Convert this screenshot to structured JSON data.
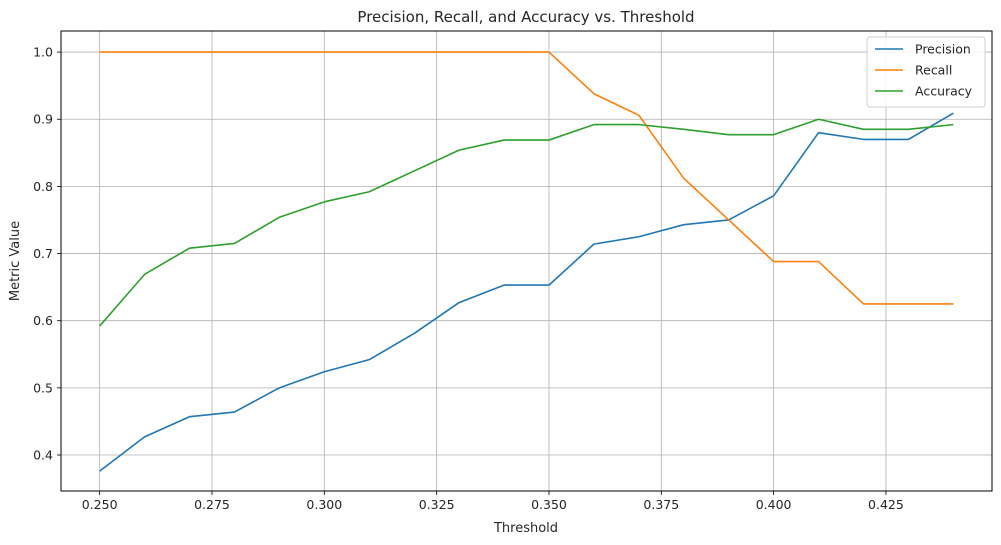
{
  "chart_data": {
    "type": "line",
    "title": "Precision, Recall, and Accuracy vs. Threshold",
    "xlabel": "Threshold",
    "ylabel": "Metric Value",
    "xlim": [
      0.2414,
      0.4486
    ],
    "ylim": [
      0.3464,
      1.0314
    ],
    "xticks": [
      0.25,
      0.275,
      0.3,
      0.325,
      0.35,
      0.375,
      0.4,
      0.425
    ],
    "xtick_labels": [
      "0.250",
      "0.275",
      "0.300",
      "0.325",
      "0.350",
      "0.375",
      "0.400",
      "0.425"
    ],
    "yticks": [
      0.4,
      0.5,
      0.6,
      0.7,
      0.8,
      0.9,
      1.0
    ],
    "ytick_labels": [
      "0.4",
      "0.5",
      "0.6",
      "0.7",
      "0.8",
      "0.9",
      "1.0"
    ],
    "grid": true,
    "legend_position": "top-right",
    "x": [
      0.25,
      0.26,
      0.27,
      0.28,
      0.29,
      0.3,
      0.31,
      0.32,
      0.33,
      0.34,
      0.35,
      0.36,
      0.37,
      0.38,
      0.39,
      0.4,
      0.41,
      0.42,
      0.43,
      0.44
    ],
    "series": [
      {
        "name": "Precision",
        "color": "#1f77b4",
        "values": [
          0.376,
          0.427,
          0.457,
          0.464,
          0.5,
          0.524,
          0.542,
          0.581,
          0.627,
          0.653,
          0.653,
          0.714,
          0.725,
          0.743,
          0.75,
          0.786,
          0.88,
          0.87,
          0.87,
          0.909
        ]
      },
      {
        "name": "Recall",
        "color": "#ff7f0e",
        "values": [
          1.0,
          1.0,
          1.0,
          1.0,
          1.0,
          1.0,
          1.0,
          1.0,
          1.0,
          1.0,
          1.0,
          0.938,
          0.906,
          0.812,
          0.75,
          0.688,
          0.688,
          0.625,
          0.625,
          0.625
        ]
      },
      {
        "name": "Accuracy",
        "color": "#2ca02c",
        "values": [
          0.592,
          0.669,
          0.708,
          0.715,
          0.754,
          0.777,
          0.792,
          0.823,
          0.854,
          0.869,
          0.869,
          0.892,
          0.892,
          0.885,
          0.877,
          0.877,
          0.9,
          0.885,
          0.885,
          0.892
        ]
      }
    ]
  }
}
